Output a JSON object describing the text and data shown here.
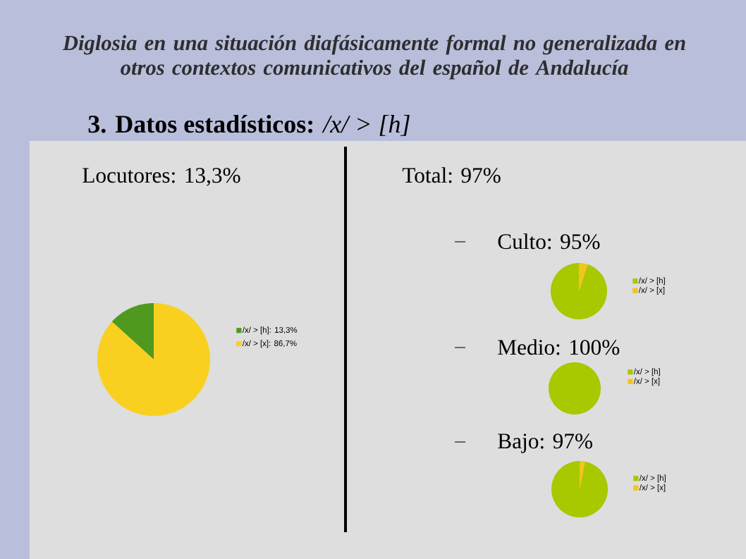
{
  "chart_data": [
    {
      "type": "other",
      "title": "Diglosia en una situación diafásicamente formal no generalizada en otros contextos comunicativos del español de Andalucía",
      "subtitle": "**3. Datos estadísticos:** */x/ > [h]*"
    },
    {
      "type": "pie",
      "title": "Locutores: 13,3%",
      "categories": [
        "/x/ > [h]: 13,3%",
        "/x/ > [x]: 86,7%"
      ],
      "values": [
        13.3,
        86.7
      ],
      "colors": [
        "#4f9a1e",
        "#f9d020"
      ],
      "legend": "right"
    },
    {
      "type": "other",
      "title": "Total: 97%"
    },
    {
      "type": "pie",
      "title": "Culto: 95%",
      "categories": [
        "/x/ > [h]",
        "/x/ > [x]"
      ],
      "values": [
        95,
        5
      ],
      "colors": [
        "#a8c800",
        "#f5c41a"
      ],
      "legend": "right"
    },
    {
      "type": "pie",
      "title": "Medio: 100%",
      "categories": [
        "/x/ > [h]",
        "/x/ > [x]"
      ],
      "values": [
        100,
        0
      ],
      "colors": [
        "#a8c800",
        "#f5c41a"
      ],
      "legend": "right"
    },
    {
      "type": "pie",
      "title": "Bajo: 97%",
      "categories": [
        "/x/ > [h]",
        "/x/ > [x]"
      ],
      "values": [
        97,
        3
      ],
      "colors": [
        "#a8c800",
        "#f5c41a"
      ],
      "legend": "right"
    }
  ]
}
